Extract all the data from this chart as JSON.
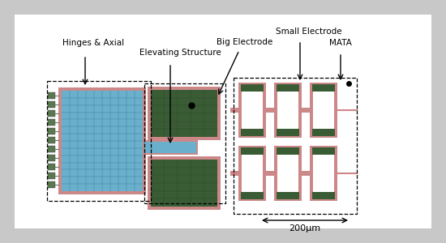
{
  "bg_color": "#c8c8c8",
  "panel_color": "#f0f0f0",
  "blue_color": "#6ab0cc",
  "pink_color": "#cc8888",
  "green_dark": "#3a5c35",
  "green_light": "#5a7850",
  "white_color": "#ffffff",
  "black": "#000000",
  "labels": {
    "hinges": "Hinges & Axial",
    "elevating": "Elevating Structure",
    "big_electrode": "Big Electrode",
    "small_electrode": "Small Electrode",
    "mata": "MATA",
    "scale": "200μm"
  },
  "font_size": 7.5,
  "figsize": [
    5.5,
    3.0
  ],
  "dpi": 100
}
